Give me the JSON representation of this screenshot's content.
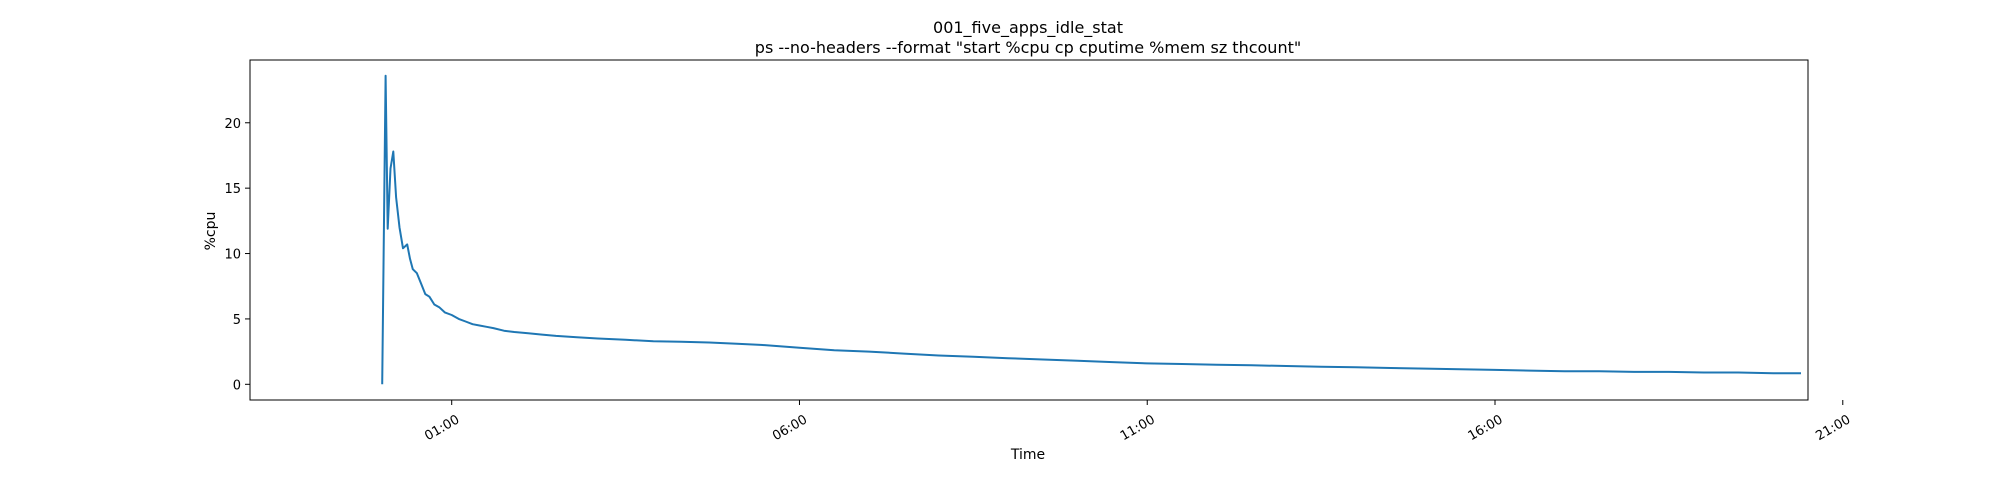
{
  "chart_data": {
    "type": "line",
    "title": "001_five_apps_idle_stat",
    "subtitle": "ps --no-headers --format \"start %cpu cp cputime %mem sz thcount\"",
    "xlabel": "Time",
    "ylabel": "%cpu",
    "x_unit": "hours",
    "xlim": [
      -1.9,
      20.5
    ],
    "ylim": [
      -1.2,
      24.8
    ],
    "grid": false,
    "x_ticks": [
      {
        "value": 1,
        "label": "01:00"
      },
      {
        "value": 6,
        "label": "06:00"
      },
      {
        "value": 11,
        "label": "11:00"
      },
      {
        "value": 16,
        "label": "16:00"
      },
      {
        "value": 21,
        "label": "21:00"
      }
    ],
    "y_ticks": [
      {
        "value": 0,
        "label": "0"
      },
      {
        "value": 5,
        "label": "5"
      },
      {
        "value": 10,
        "label": "10"
      },
      {
        "value": 15,
        "label": "15"
      },
      {
        "value": 20,
        "label": "20"
      }
    ],
    "series": [
      {
        "color": "#1f77b4",
        "x": [
          0.0,
          0.05,
          0.08,
          0.12,
          0.16,
          0.2,
          0.25,
          0.3,
          0.36,
          0.4,
          0.44,
          0.5,
          0.56,
          0.62,
          0.68,
          0.75,
          0.82,
          0.9,
          1.0,
          1.1,
          1.2,
          1.3,
          1.4,
          1.5,
          1.6,
          1.75,
          1.9,
          2.1,
          2.3,
          2.5,
          2.8,
          3.1,
          3.5,
          3.9,
          4.3,
          4.7,
          5.1,
          5.5,
          6.0,
          6.5,
          7.0,
          7.5,
          8.0,
          8.5,
          9.0,
          9.5,
          10.0,
          10.5,
          11.0,
          11.5,
          12.0,
          12.5,
          13.0,
          13.5,
          14.0,
          14.5,
          15.0,
          15.5,
          16.0,
          16.5,
          17.0,
          17.5,
          18.0,
          18.5,
          19.0,
          19.5,
          20.0,
          20.4
        ],
        "y": [
          0.0,
          23.6,
          11.9,
          16.5,
          17.8,
          14.3,
          12.0,
          10.4,
          10.7,
          9.6,
          8.8,
          8.5,
          7.7,
          6.9,
          6.7,
          6.1,
          5.9,
          5.5,
          5.3,
          5.0,
          4.8,
          4.6,
          4.5,
          4.4,
          4.3,
          4.1,
          4.0,
          3.9,
          3.8,
          3.7,
          3.6,
          3.5,
          3.4,
          3.3,
          3.25,
          3.2,
          3.1,
          3.0,
          2.8,
          2.6,
          2.5,
          2.35,
          2.2,
          2.1,
          2.0,
          1.9,
          1.8,
          1.7,
          1.6,
          1.55,
          1.5,
          1.45,
          1.4,
          1.35,
          1.3,
          1.25,
          1.2,
          1.15,
          1.1,
          1.05,
          1.0,
          1.0,
          0.95,
          0.95,
          0.9,
          0.9,
          0.85,
          0.85
        ]
      }
    ]
  }
}
